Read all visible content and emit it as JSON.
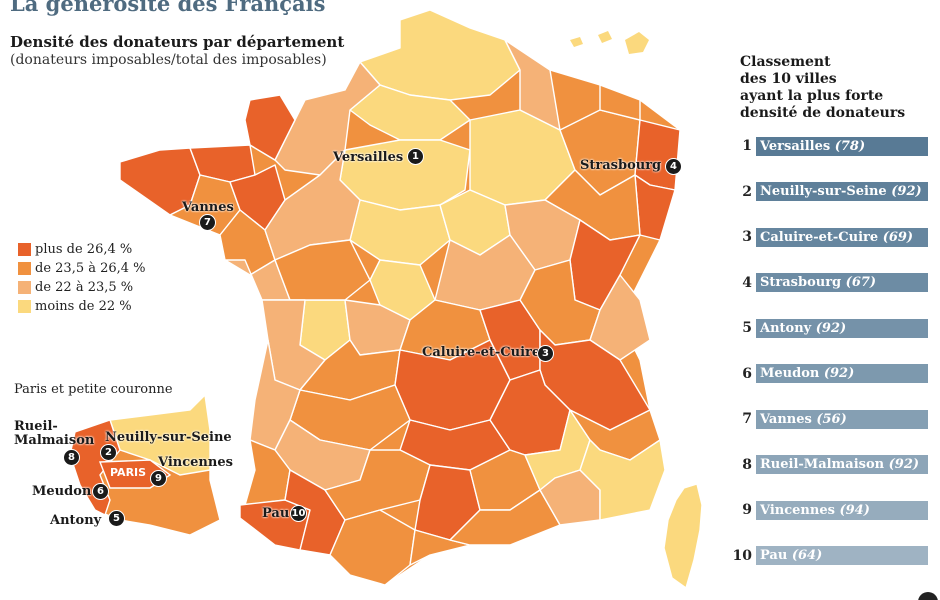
{
  "title": "La générosité des Français",
  "subtitle": "Densité des donateurs par département",
  "subtitle_note": "(donateurs imposables/total des imposables)",
  "legend": [
    {
      "label": "plus de 26,4 %",
      "color": "#e8622a"
    },
    {
      "label": "de 23,5 à 26,4 %",
      "color": "#f0913f"
    },
    {
      "label": "de 22 à 23,5 %",
      "color": "#f5b277"
    },
    {
      "label": "moins de 22 %",
      "color": "#fbd97e"
    }
  ],
  "inset": {
    "title": "Paris et petite couronne",
    "center_label": "PARIS"
  },
  "ranking": {
    "title_lines": [
      "Classement",
      "des 10 villes",
      "ayant la plus forte",
      "densité de donateurs"
    ],
    "items": [
      {
        "rank": "1",
        "city": "Versailles",
        "dept": "(78)",
        "color": "#587a95"
      },
      {
        "rank": "2",
        "city": "Neuilly-sur-Seine",
        "dept": "(92)",
        "color": "#5f809a"
      },
      {
        "rank": "3",
        "city": "Caluire-et-Cuire",
        "dept": "(69)",
        "color": "#66869f"
      },
      {
        "rank": "4",
        "city": "Strasbourg",
        "dept": "(67)",
        "color": "#6d8ca4"
      },
      {
        "rank": "5",
        "city": "Antony",
        "dept": "(92)",
        "color": "#7592a9"
      },
      {
        "rank": "6",
        "city": "Meudon",
        "dept": "(92)",
        "color": "#7d99ae"
      },
      {
        "rank": "7",
        "city": "Vannes",
        "dept": "(56)",
        "color": "#859fb3"
      },
      {
        "rank": "8",
        "city": "Rueil-Malmaison",
        "dept": "(92)",
        "color": "#8da5b8"
      },
      {
        "rank": "9",
        "city": "Vincennes",
        "dept": "(94)",
        "color": "#96acbd"
      },
      {
        "rank": "10",
        "city": "Pau",
        "dept": "(64)",
        "color": "#9fb3c3"
      }
    ]
  },
  "city_labels": {
    "versailles": "Versailles",
    "strasbourg": "Strasbourg",
    "vannes": "Vannes",
    "caluire": "Caluire-et-Cuire",
    "pau": "Pau",
    "rueil": "Rueil-\nMalmaison",
    "neuilly": "Neuilly-sur-Seine",
    "vincennes": "Vincennes",
    "meudon": "Meudon",
    "antony": "Antony"
  },
  "markers": {
    "m1": "1",
    "m2": "2",
    "m3": "3",
    "m4": "4",
    "m5": "5",
    "m6": "6",
    "m7": "7",
    "m8": "8",
    "m9": "9",
    "m10": "10"
  }
}
